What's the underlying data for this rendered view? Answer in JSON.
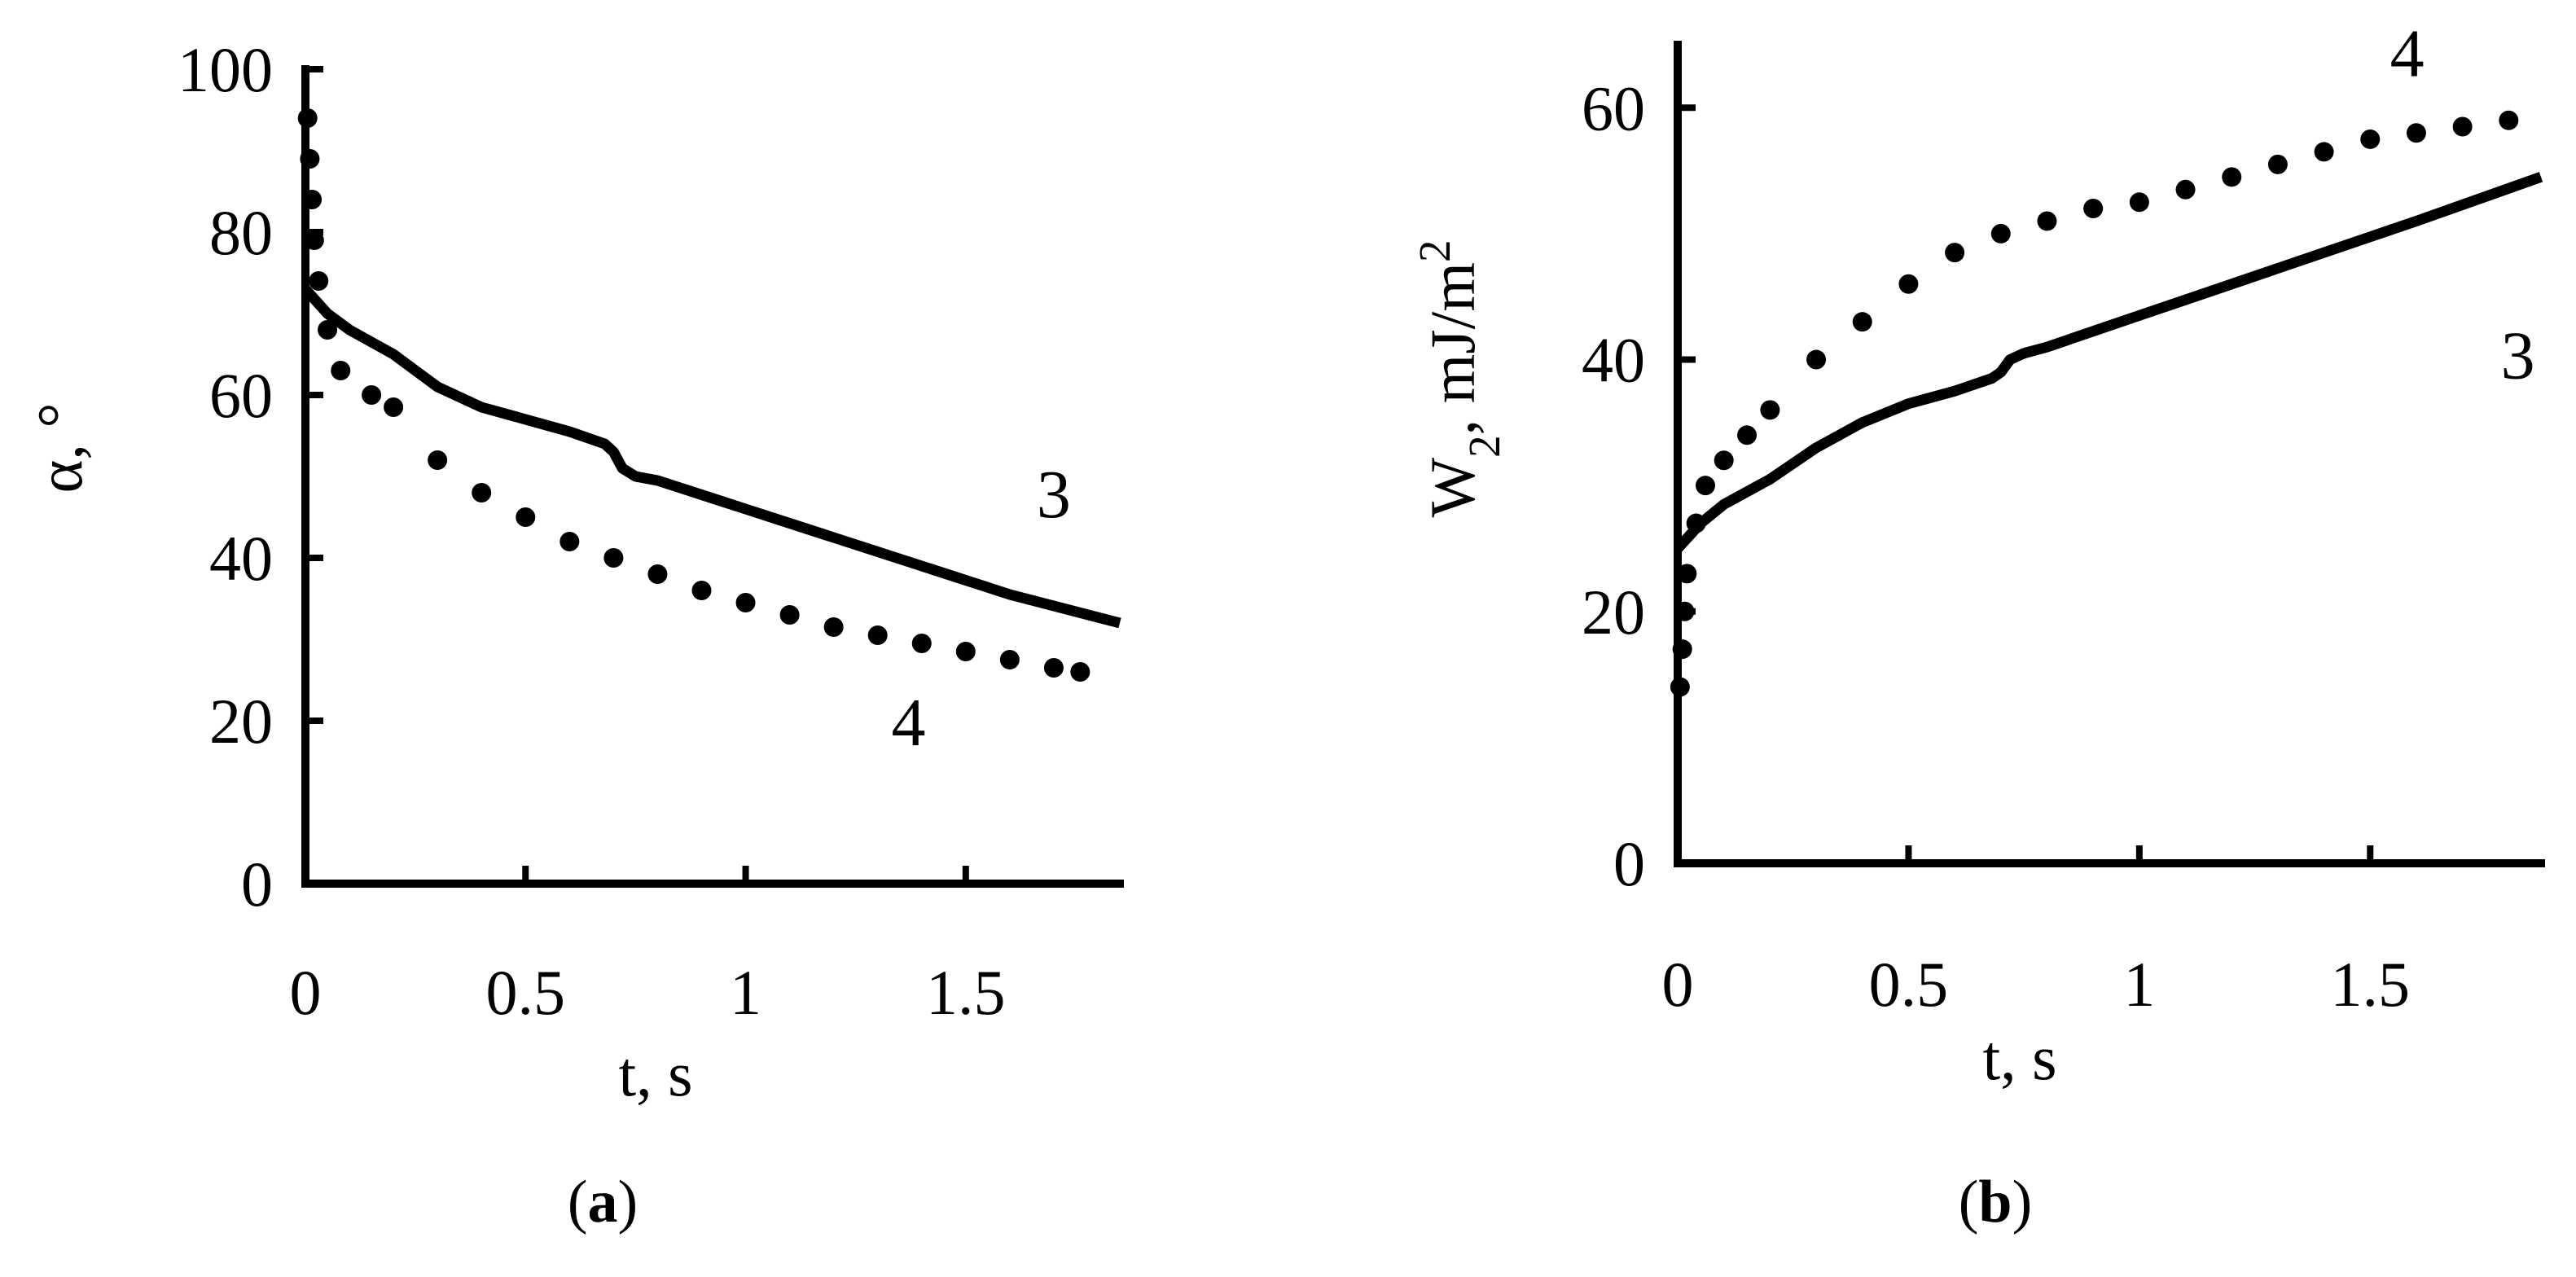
{
  "chart_data": [
    {
      "type": "line",
      "panel_label": {
        "open": "(",
        "letter": "a",
        "close": ")"
      },
      "xlabel": "t, s",
      "ylabel": "α, °",
      "xlim": [
        0,
        1.85
      ],
      "ylim": [
        0,
        100
      ],
      "x_ticks": [
        0,
        0.5,
        1,
        1.5
      ],
      "x_tick_labels": [
        "0",
        "0.5",
        "1",
        "1.5"
      ],
      "y_ticks": [
        0,
        20,
        40,
        60,
        80,
        100
      ],
      "y_tick_labels": [
        "0",
        "20",
        "40",
        "60",
        "80",
        "100"
      ],
      "grid": false,
      "series": [
        {
          "name": "3",
          "style": "solid",
          "x": [
            0,
            0.05,
            0.1,
            0.2,
            0.3,
            0.4,
            0.5,
            0.6,
            0.68,
            0.7,
            0.72,
            0.75,
            0.8,
            1.0,
            1.2,
            1.4,
            1.6,
            1.85
          ],
          "y": [
            73,
            70,
            68,
            65,
            61,
            58.5,
            57,
            55.5,
            54,
            53,
            51,
            50,
            49.5,
            46,
            42.5,
            39,
            35.5,
            32
          ]
        },
        {
          "name": "4",
          "style": "dotted",
          "x": [
            0.005,
            0.01,
            0.015,
            0.02,
            0.03,
            0.05,
            0.08,
            0.15,
            0.2,
            0.3,
            0.4,
            0.5,
            0.6,
            0.7,
            0.8,
            0.9,
            1.0,
            1.1,
            1.2,
            1.3,
            1.4,
            1.5,
            1.6,
            1.7,
            1.76
          ],
          "y": [
            94,
            89,
            84,
            79,
            74,
            68,
            63,
            60,
            58.5,
            52,
            48,
            45,
            42,
            40,
            38,
            36,
            34.5,
            33,
            31.5,
            30.5,
            29.5,
            28.5,
            27.5,
            26.5,
            26
          ]
        }
      ],
      "series_labels": [
        {
          "text": "3",
          "x": 1.7,
          "y": 45
        },
        {
          "text": "4",
          "x": 1.37,
          "y": 17
        }
      ]
    },
    {
      "type": "line",
      "panel_label": {
        "open": "(",
        "letter": "b",
        "close": ")"
      },
      "xlabel": "t, s",
      "ylabel_main": "W",
      "ylabel_sub": "2",
      "ylabel_rest": ", mJ/m",
      "ylabel_sup": "2",
      "xlim": [
        0,
        1.87
      ],
      "ylim": [
        0,
        65
      ],
      "x_ticks": [
        0,
        0.5,
        1,
        1.5
      ],
      "x_tick_labels": [
        "0",
        "0.5",
        "1",
        "1.5"
      ],
      "y_ticks": [
        0,
        20,
        40,
        60
      ],
      "y_tick_labels": [
        "0",
        "20",
        "40",
        "60"
      ],
      "grid": false,
      "series": [
        {
          "name": "3",
          "style": "solid",
          "x": [
            0,
            0.05,
            0.1,
            0.2,
            0.3,
            0.4,
            0.5,
            0.6,
            0.68,
            0.7,
            0.72,
            0.75,
            0.8,
            1.0,
            1.2,
            1.4,
            1.6,
            1.87
          ],
          "y": [
            25,
            27,
            28.5,
            30.5,
            33,
            35,
            36.5,
            37.5,
            38.5,
            39,
            40,
            40.5,
            41,
            43.5,
            46,
            48.5,
            51,
            54.5
          ]
        },
        {
          "name": "4",
          "style": "dotted",
          "x": [
            0.005,
            0.01,
            0.015,
            0.02,
            0.04,
            0.06,
            0.1,
            0.15,
            0.2,
            0.3,
            0.4,
            0.5,
            0.6,
            0.7,
            0.8,
            0.9,
            1.0,
            1.1,
            1.2,
            1.3,
            1.4,
            1.5,
            1.6,
            1.7,
            1.8
          ],
          "y": [
            14,
            17,
            20,
            23,
            27,
            30,
            32,
            34,
            36,
            40,
            43,
            46,
            48.5,
            50,
            51,
            52,
            52.5,
            53.5,
            54.5,
            55.5,
            56.5,
            57.5,
            58,
            58.5,
            59
          ]
        }
      ],
      "series_labels": [
        {
          "text": "4",
          "x": 1.58,
          "y": 62.5
        },
        {
          "text": "3",
          "x": 1.82,
          "y": 38.5
        }
      ]
    }
  ]
}
